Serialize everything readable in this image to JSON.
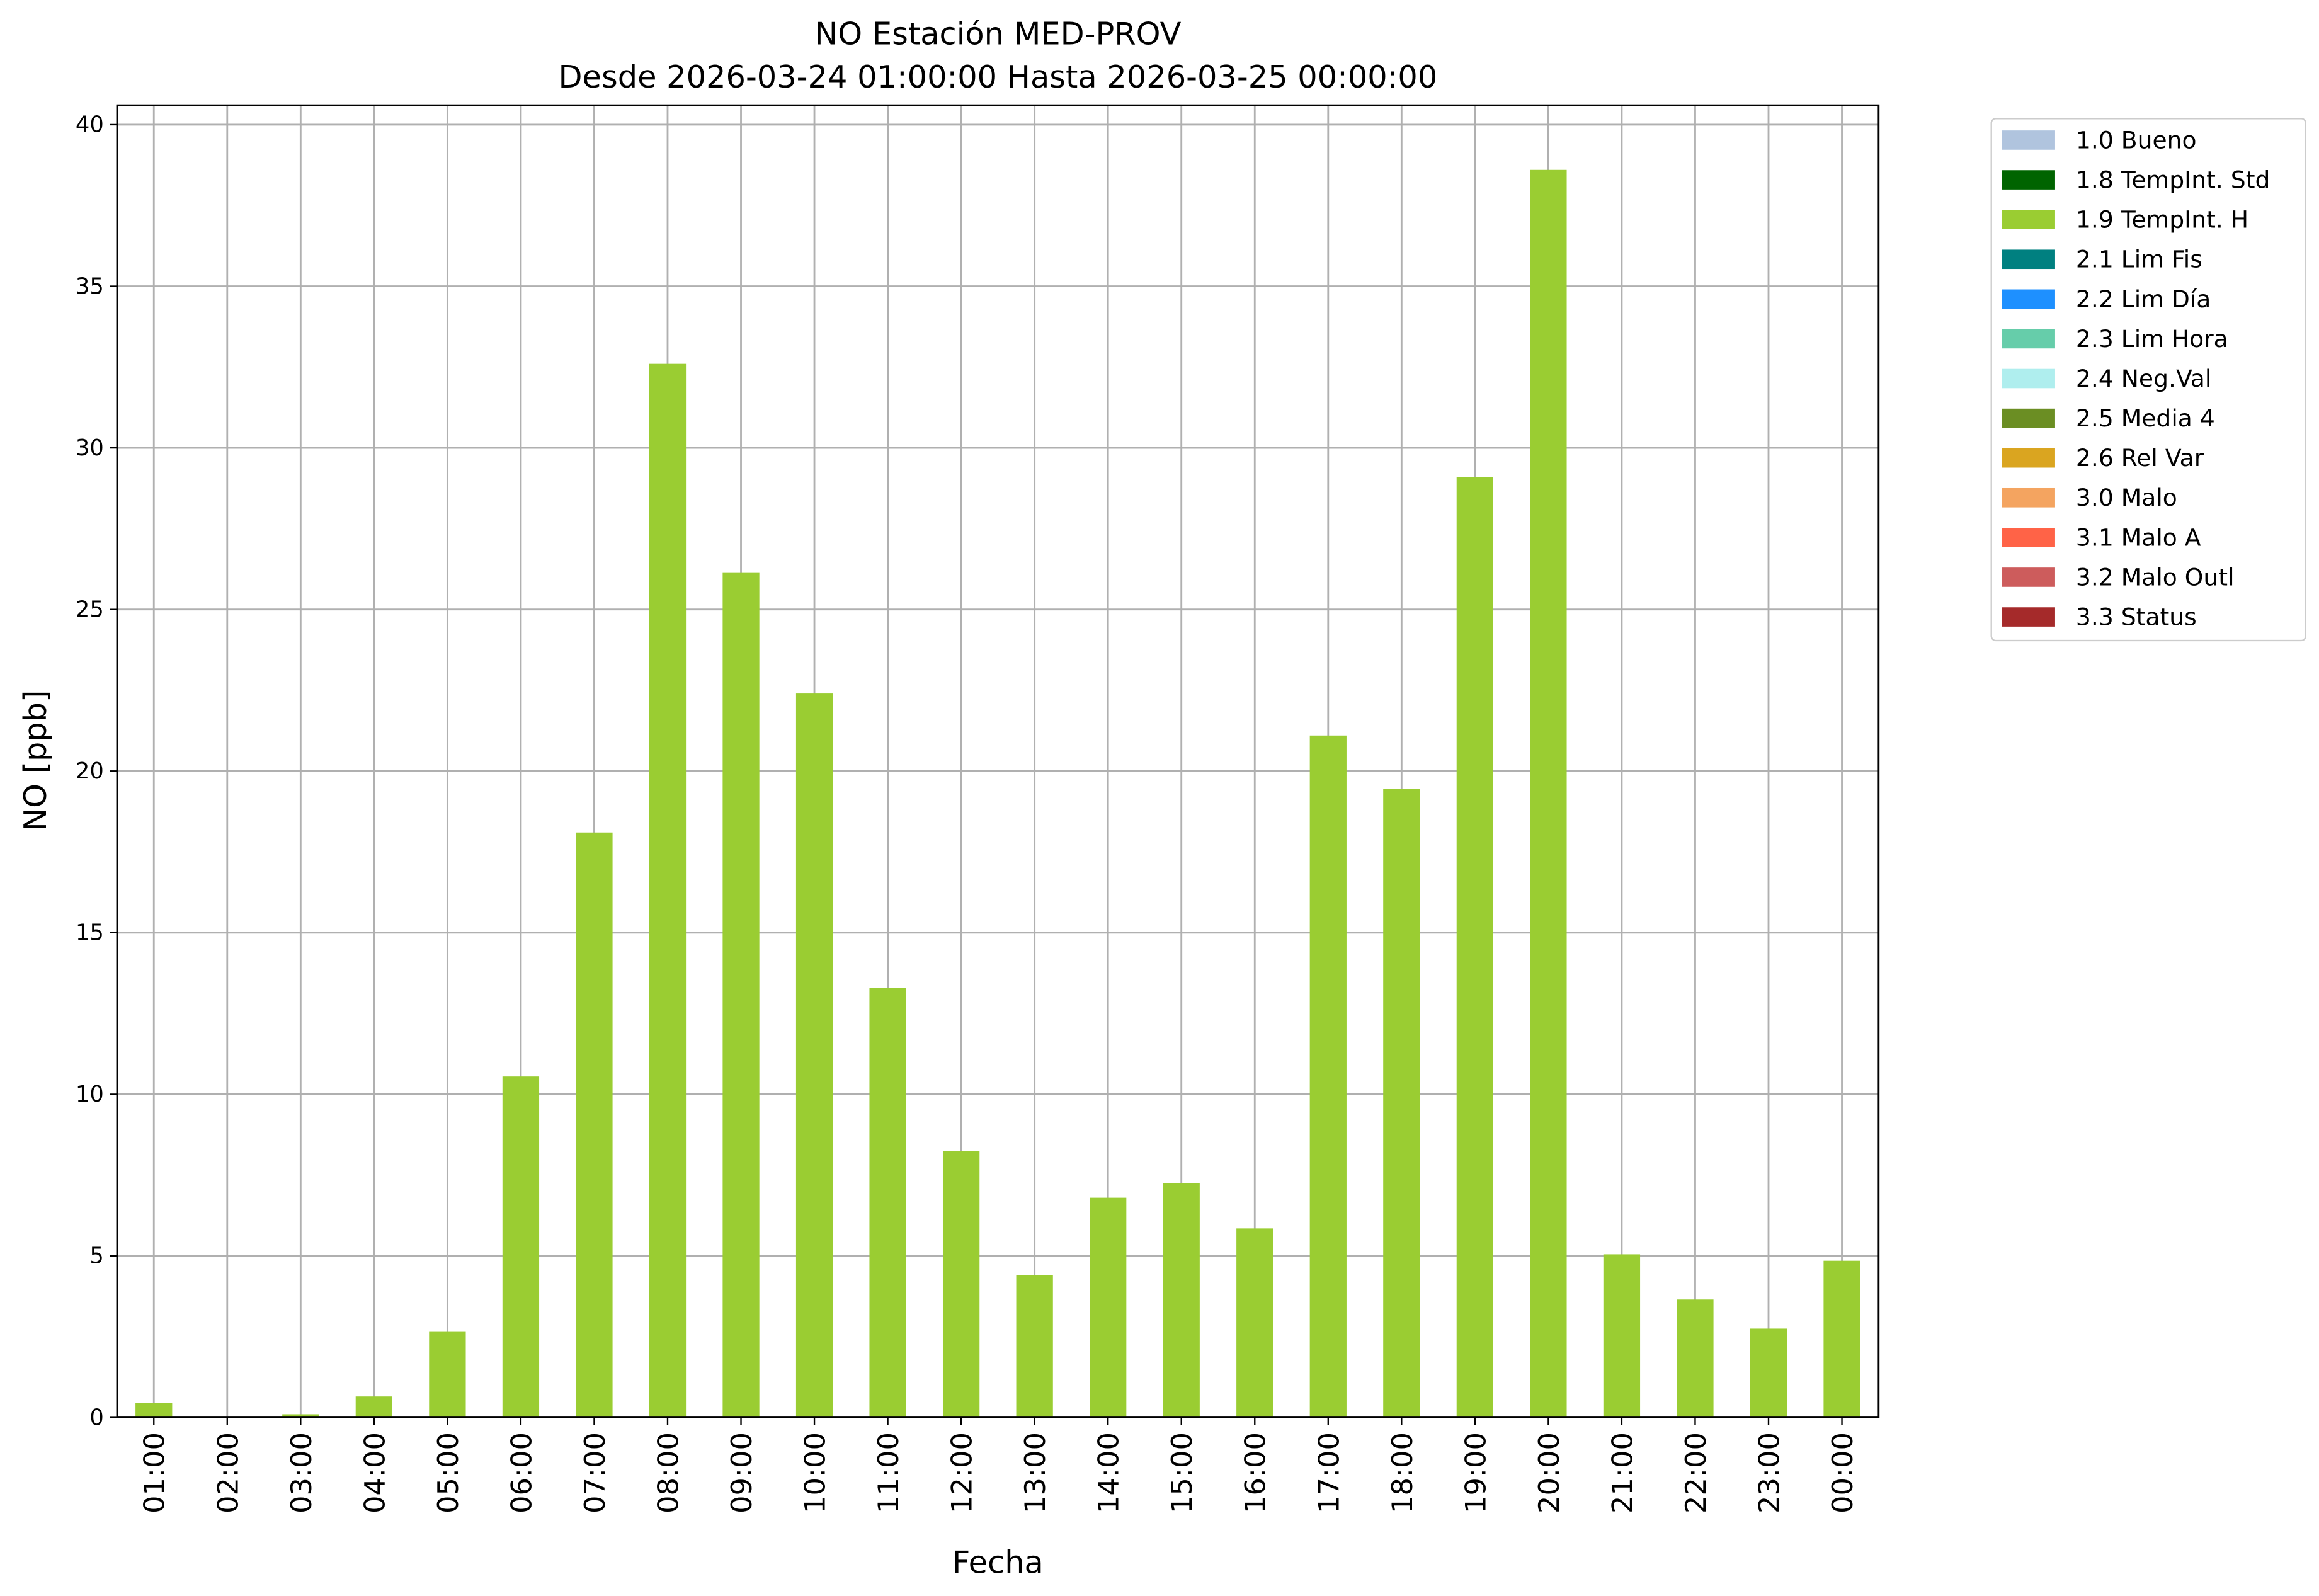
{
  "chart_data": {
    "type": "bar",
    "title": "NO Estación MED-PROV",
    "subtitle": "Desde 2026-03-24 01:00:00 Hasta 2026-03-25 00:00:00",
    "x_label": "Fecha",
    "y_label": "NO [ppb]",
    "categories": [
      "01:00",
      "02:00",
      "03:00",
      "04:00",
      "05:00",
      "06:00",
      "07:00",
      "08:00",
      "09:00",
      "10:00",
      "11:00",
      "12:00",
      "13:00",
      "14:00",
      "15:00",
      "16:00",
      "17:00",
      "18:00",
      "19:00",
      "20:00",
      "21:00",
      "22:00",
      "23:00",
      "00:00"
    ],
    "series": [
      {
        "name": "1.0 Bueno",
        "color": "#b0c4de"
      },
      {
        "name": "1.8 TempInt. Std",
        "color": "#006400"
      },
      {
        "name": "1.9 TempInt. H",
        "color": "#9acd32",
        "values": [
          0.45,
          0,
          0.1,
          0.65,
          2.65,
          10.55,
          18.1,
          32.6,
          26.15,
          22.4,
          13.3,
          8.25,
          4.4,
          6.8,
          7.25,
          5.85,
          21.1,
          19.45,
          29.1,
          38.6,
          5.05,
          3.65,
          2.75,
          4.85
        ]
      },
      {
        "name": "2.1 Lim Fis",
        "color": "#008080"
      },
      {
        "name": "2.2 Lim Día",
        "color": "#1e90ff"
      },
      {
        "name": "2.3 Lim Hora",
        "color": "#66cdaa"
      },
      {
        "name": "2.4 Neg.Val",
        "color": "#afeeee"
      },
      {
        "name": "2.5 Media 4",
        "color": "#6b8e23"
      },
      {
        "name": "2.6 Rel Var",
        "color": "#daa520"
      },
      {
        "name": "3.0 Malo",
        "color": "#f4a460"
      },
      {
        "name": "3.1 Malo A",
        "color": "#ff6347"
      },
      {
        "name": "3.2 Malo Outl",
        "color": "#cd5c5c"
      },
      {
        "name": "3.3 Status",
        "color": "#a52a2a"
      }
    ],
    "ylim": [
      0,
      40.6
    ],
    "yticks": [
      0,
      5,
      10,
      15,
      20,
      25,
      30,
      35,
      40
    ],
    "grid": true
  }
}
